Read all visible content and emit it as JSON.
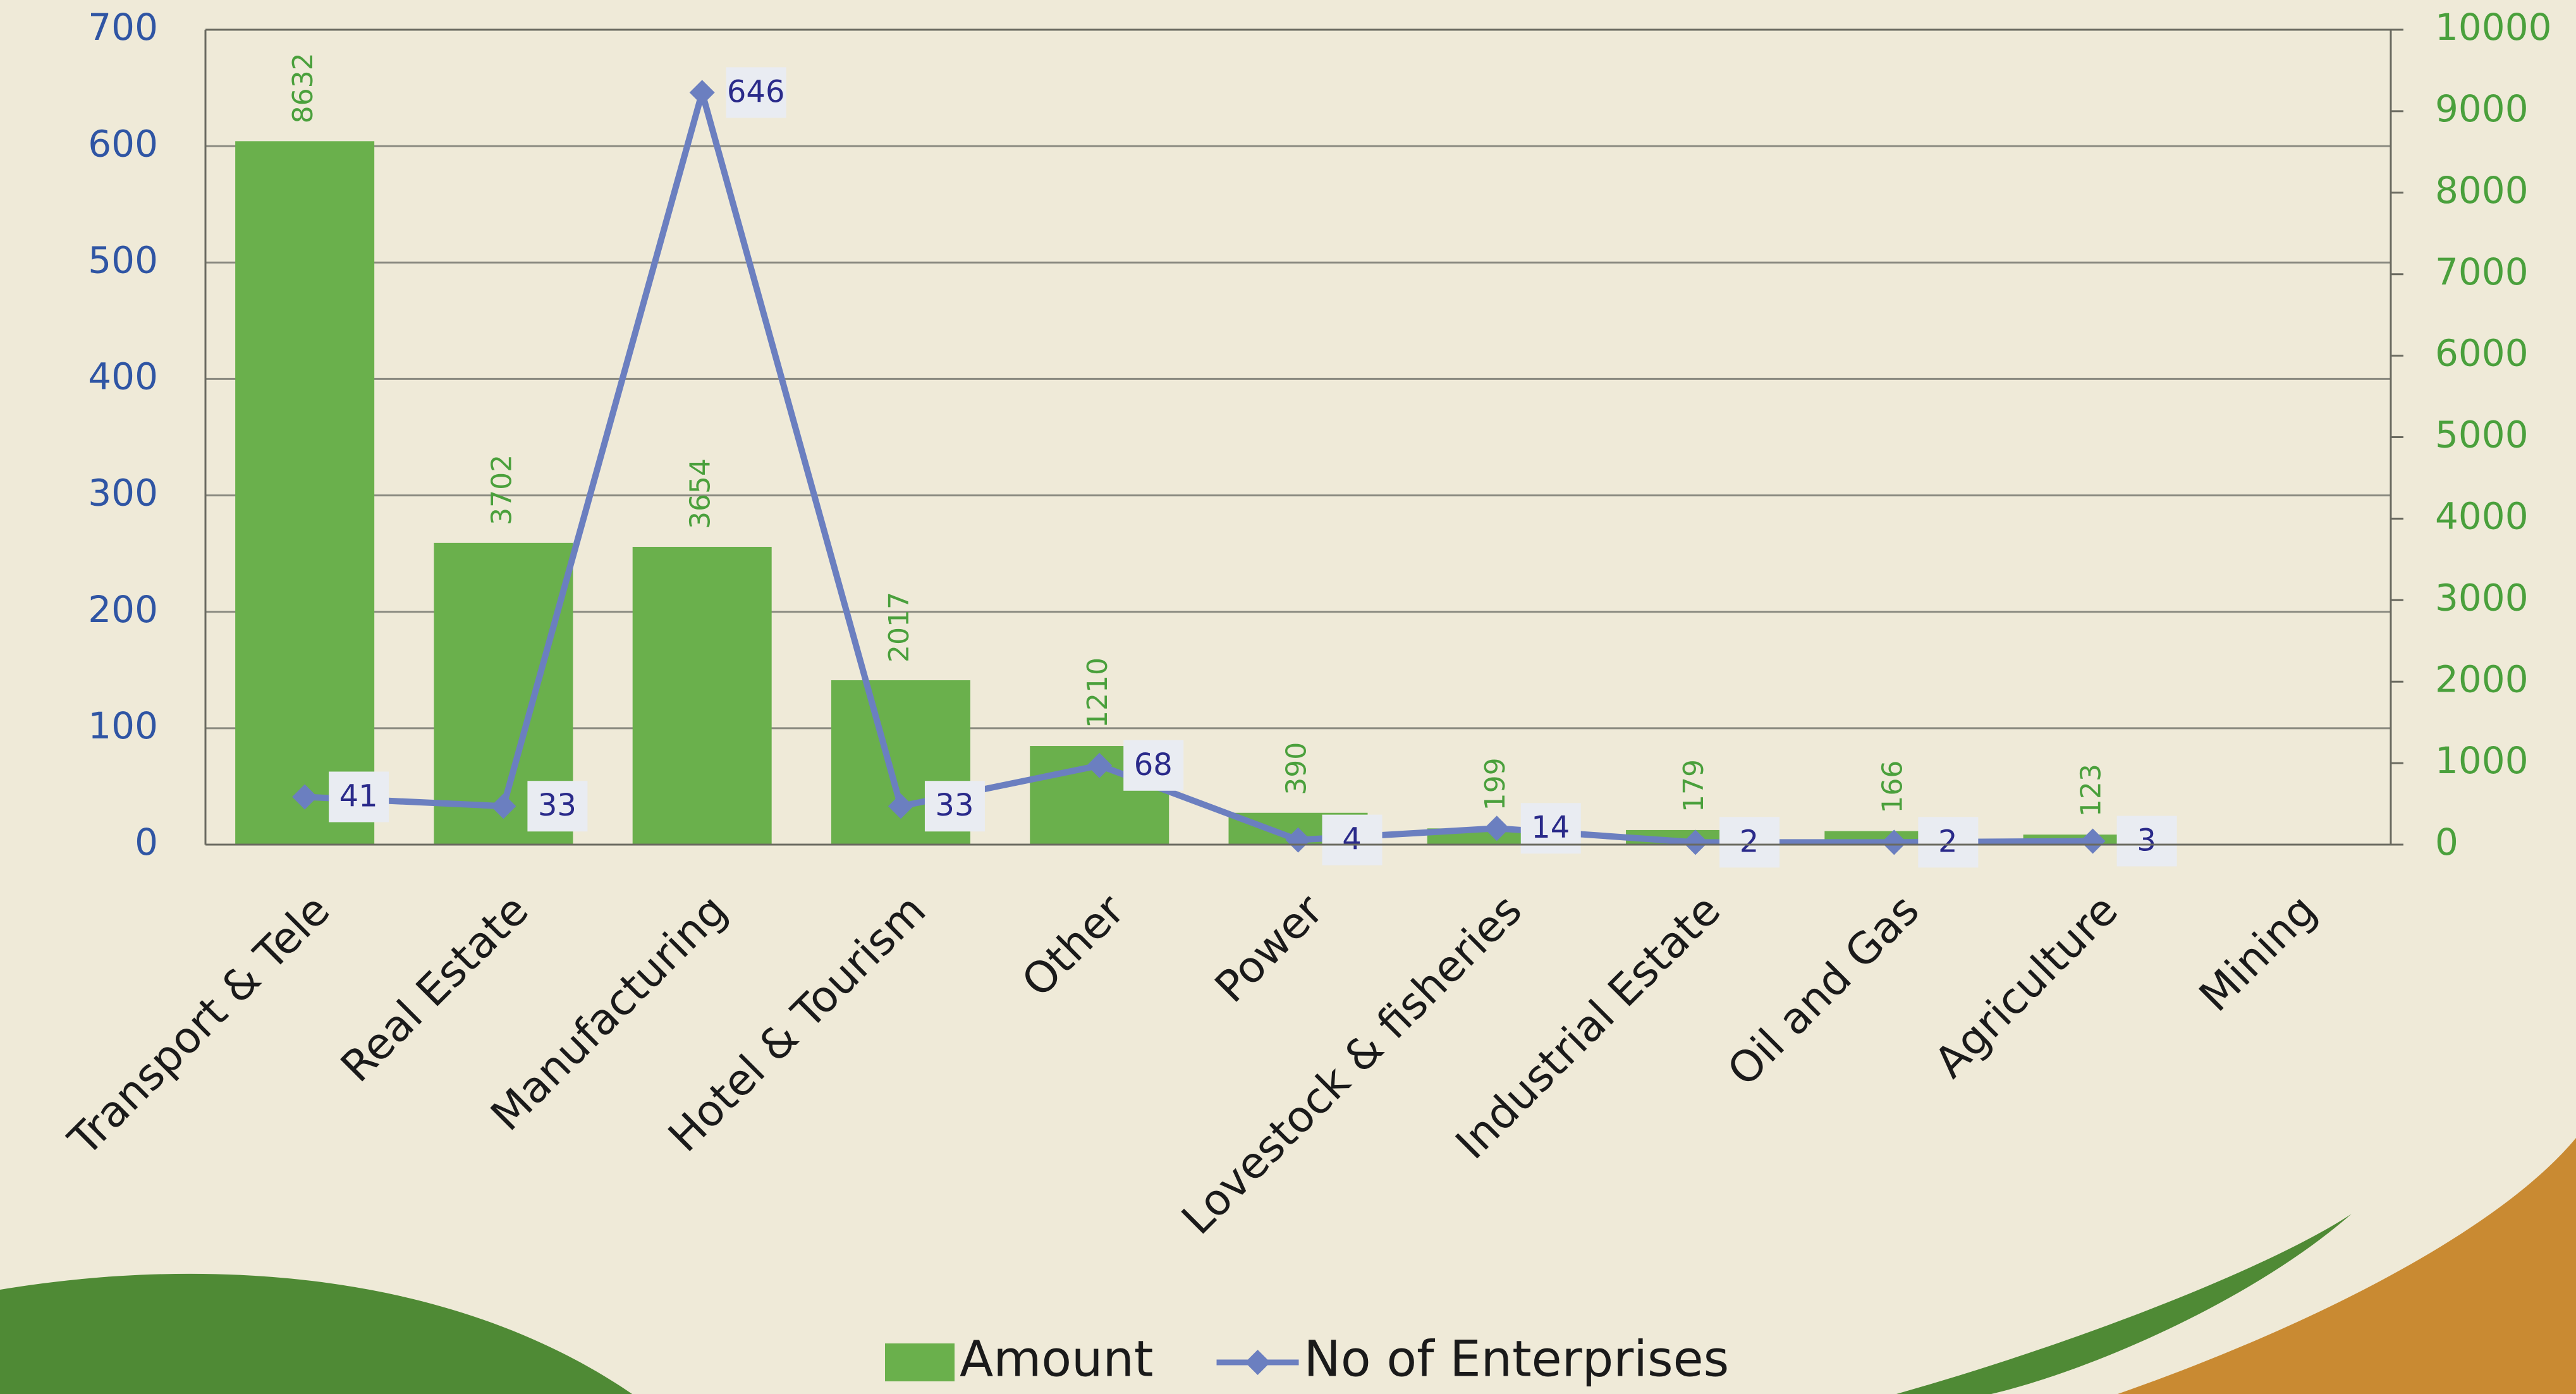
{
  "chart_data": {
    "type": "combo",
    "categories": [
      "Transport & Tele",
      "Real Estate",
      "Manufacturing",
      "Hotel & Tourism",
      "Other",
      "Power",
      "Lovestock & fisheries",
      "Industrial Estate",
      "Oil and Gas",
      "Agriculture",
      "Mining"
    ],
    "series": [
      {
        "name": "Amount",
        "type": "bar",
        "axis": "y2",
        "color": "#6ab04c",
        "values": [
          8632,
          3702,
          3654,
          2017,
          1210,
          390,
          199,
          179,
          166,
          123,
          null
        ]
      },
      {
        "name": "No of Enterprises",
        "type": "line",
        "color": "#6b7fc0",
        "values": [
          41,
          33,
          646,
          33,
          68,
          4,
          14,
          2,
          2,
          3,
          null
        ]
      }
    ],
    "ylim": [
      0,
      700
    ],
    "yticks": [
      0,
      100,
      200,
      300,
      400,
      500,
      600,
      700
    ],
    "y2lim": [
      0,
      10000
    ],
    "y2ticks": [
      0,
      1000,
      2000,
      3000,
      4000,
      5000,
      6000,
      7000,
      8000,
      9000,
      10000
    ],
    "grid": true,
    "legend": "bottom"
  }
}
